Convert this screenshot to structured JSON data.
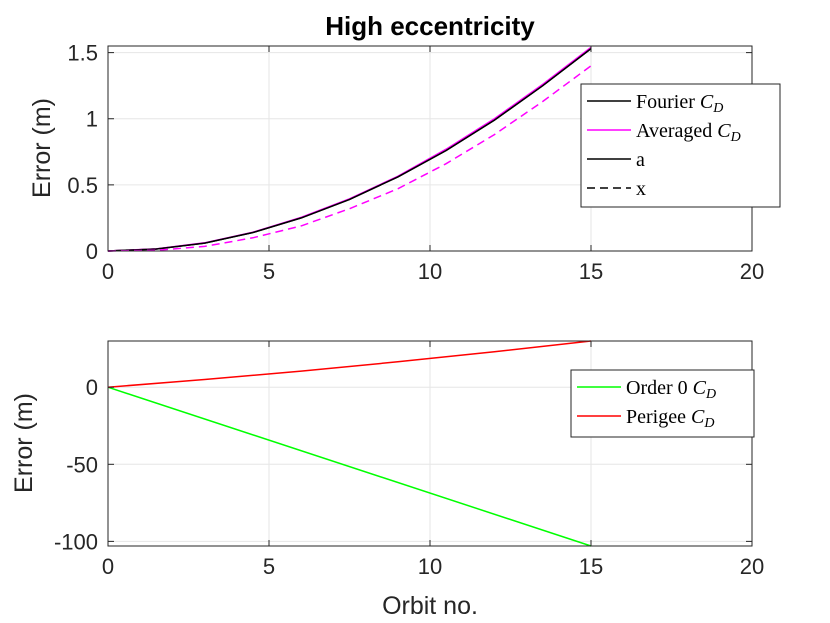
{
  "chart_data": [
    {
      "type": "line",
      "title": "High eccentricity",
      "xlabel": "",
      "ylabel": "Error (m)",
      "xlim": [
        0,
        20
      ],
      "ylim": [
        0,
        1.55
      ],
      "xticks": [
        0,
        5,
        10,
        15,
        20
      ],
      "xtick_labels": [
        "0",
        "5",
        "10",
        "15",
        "20"
      ],
      "yticks": [
        0,
        0.5,
        1,
        1.5
      ],
      "ytick_labels": [
        "0",
        "0.5",
        "1",
        "1.5"
      ],
      "grid": true,
      "legend_position": "right",
      "series": [
        {
          "name": "Fourier C_D",
          "label": "Fourier",
          "sym": "C",
          "sub": "D",
          "style": "solid",
          "color": "#000000",
          "width": 1.5,
          "x": [
            0,
            1.5,
            3,
            4.5,
            6,
            7.5,
            9,
            10.5,
            12,
            13.5,
            15
          ],
          "y": [
            0,
            0.015,
            0.06,
            0.14,
            0.25,
            0.39,
            0.56,
            0.76,
            0.99,
            1.25,
            1.53
          ]
        },
        {
          "name": "Averaged C_D",
          "label": "Averaged",
          "sym": "C",
          "sub": "D",
          "style": "solid",
          "color": "#ff00ff",
          "width": 1.5,
          "x": [
            0,
            1.5,
            3,
            4.5,
            6,
            7.5,
            9,
            10.5,
            12,
            13.5,
            15
          ],
          "y": [
            0,
            0.016,
            0.062,
            0.142,
            0.255,
            0.395,
            0.565,
            0.77,
            1.0,
            1.26,
            1.54
          ]
        },
        {
          "name": "a",
          "label": "a",
          "sym": "",
          "sub": "",
          "style": "solid",
          "color": "#000000",
          "width": 1.5,
          "x": [
            0,
            1.5,
            3,
            4.5,
            6,
            7.5,
            9,
            10.5,
            12,
            13.5,
            15
          ],
          "y": [
            0,
            0.015,
            0.06,
            0.14,
            0.25,
            0.39,
            0.56,
            0.76,
            0.99,
            1.25,
            1.53
          ]
        },
        {
          "name": "x",
          "label": "x",
          "sym": "",
          "sub": "",
          "style": "dashed",
          "color": "#000000",
          "width": 1.5,
          "x": [],
          "y": []
        },
        {
          "name": "Averaged x (dashed)",
          "label": "",
          "sym": "",
          "sub": "",
          "style": "dashed",
          "color": "#ff00ff",
          "width": 1.5,
          "legend": false,
          "x": [
            0,
            1.5,
            3,
            4.5,
            6,
            7.5,
            9,
            10.5,
            12,
            13.5,
            15
          ],
          "y": [
            0,
            0.005,
            0.035,
            0.1,
            0.19,
            0.32,
            0.47,
            0.66,
            0.88,
            1.13,
            1.4
          ]
        }
      ]
    },
    {
      "type": "line",
      "title": "",
      "xlabel": "Orbit no.",
      "ylabel": "Error (m)",
      "xlim": [
        0,
        20
      ],
      "ylim": [
        -103,
        30
      ],
      "xticks": [
        0,
        5,
        10,
        15,
        20
      ],
      "xtick_labels": [
        "0",
        "5",
        "10",
        "15",
        "20"
      ],
      "yticks": [
        -100,
        -50,
        0
      ],
      "ytick_labels": [
        "-100",
        "-50",
        "0"
      ],
      "grid": true,
      "legend_position": "right",
      "series": [
        {
          "name": "Order 0 C_D",
          "label": "Order 0",
          "sym": "C",
          "sub": "D",
          "style": "solid",
          "color": "#00ff00",
          "width": 1.5,
          "x": [
            0,
            15
          ],
          "y": [
            0,
            -103
          ]
        },
        {
          "name": "Perigee C_D",
          "label": "Perigee",
          "sym": "C",
          "sub": "D",
          "style": "solid",
          "color": "#ff0000",
          "width": 1.5,
          "x": [
            0,
            3,
            6,
            9,
            12,
            15
          ],
          "y": [
            0,
            5,
            10.5,
            16.5,
            23,
            30
          ]
        }
      ]
    }
  ]
}
